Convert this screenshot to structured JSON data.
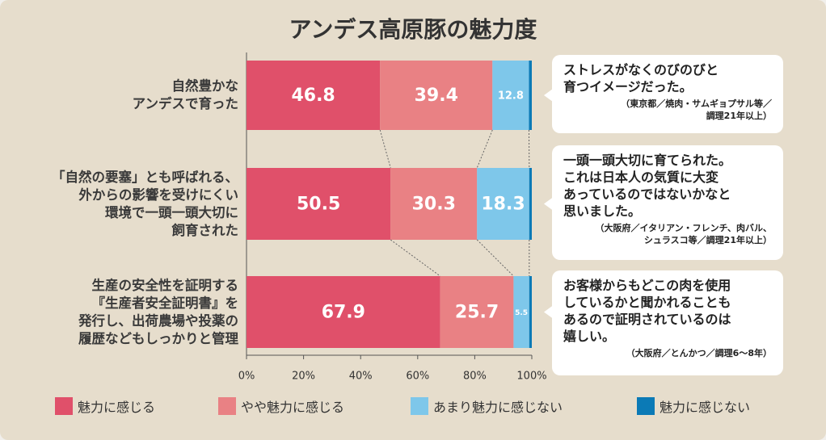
{
  "chart_data": {
    "type": "stacked-barh",
    "title": "アンデス高原豚の魅力度",
    "categories": [
      "自然豊かな\nアンデスで育った",
      "「自然の要塞」とも呼ばれる、\n外からの影響を受けにくい\n環境で一頭一頭大切に\n飼育された",
      "生産の安全性を証明する\n『生産者安全証明書』を\n発行し、出荷農場や投薬の\n履歴などもしっかりと管理"
    ],
    "series": [
      {
        "name": "魅力に感じる",
        "color": "#e0506a",
        "values": [
          46.8,
          50.5,
          67.9
        ]
      },
      {
        "name": "やや魅力に感じる",
        "color": "#e98184",
        "values": [
          39.4,
          30.3,
          25.7
        ]
      },
      {
        "name": "あまり魅力に感じない",
        "color": "#7ec7ea",
        "values": [
          12.8,
          18.3,
          5.5
        ]
      },
      {
        "name": "魅力に感じない",
        "color": "#0b7ab6",
        "values": [
          1.0,
          0.9,
          0.9
        ]
      }
    ],
    "xlim": [
      0,
      100
    ],
    "xticks": [
      {
        "value": 0,
        "label": "0%"
      },
      {
        "value": 20,
        "label": "20%"
      },
      {
        "value": 40,
        "label": "40%"
      },
      {
        "value": 60,
        "label": "60%"
      },
      {
        "value": 80,
        "label": "80%"
      },
      {
        "value": 100,
        "label": "100%"
      }
    ],
    "annotations": [
      {
        "text": "ストレスがなくのびのびと\n育つイメージだった。",
        "source": "（東京都／焼肉・サムギョプサル等／\n調理21年以上）"
      },
      {
        "text": "一頭一頭大切に育てられた。\nこれは日本人の気質に大変\nあっているのではないかなと\n思いました。",
        "source": "（大阪府／イタリアン・フレンチ、肉バル、\nシュラスコ等／調理21年以上）"
      },
      {
        "text": "お客様からもどこの肉を使用\nしているかと聞かれることも\nあるので証明されているのは\n嬉しい。",
        "source": "（大阪府／とんかつ／調理6～8年）"
      }
    ]
  }
}
